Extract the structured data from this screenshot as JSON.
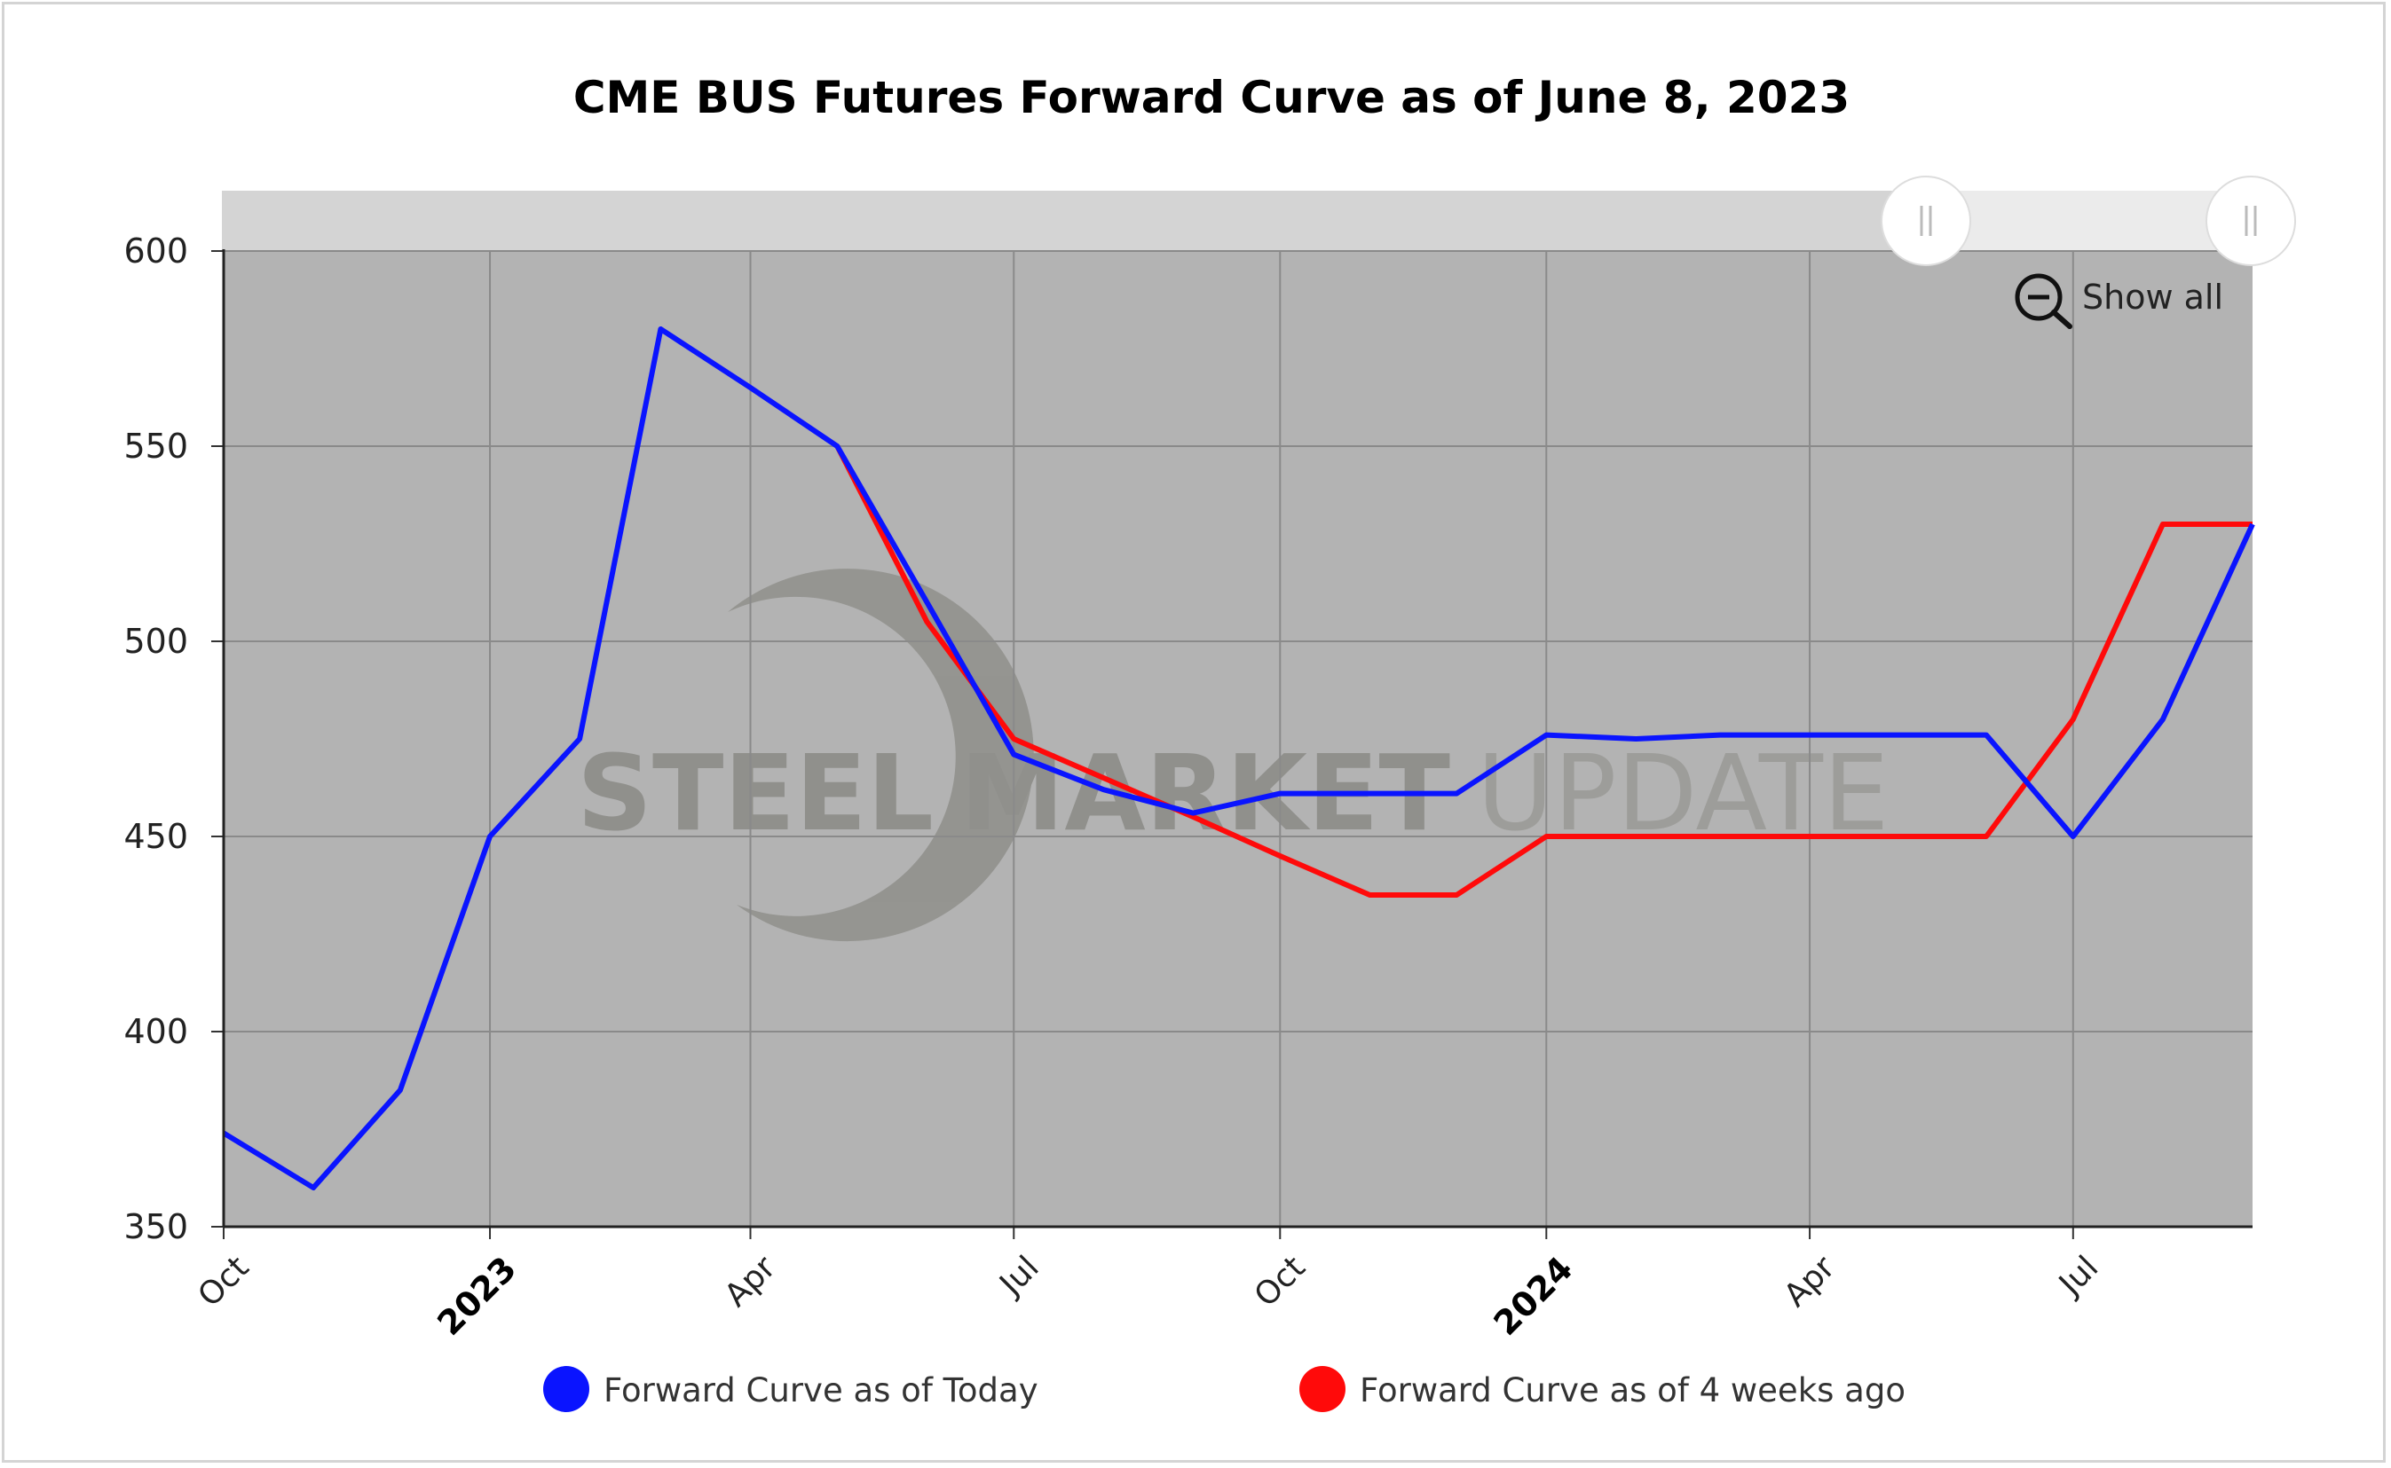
{
  "chart_data": {
    "type": "line",
    "title": "CME BUS Futures Forward Curve as of June 8, 2023",
    "ylim": [
      350,
      600
    ],
    "yticks": [
      "350",
      "400",
      "450",
      "500",
      "550",
      "600"
    ],
    "xlim": [
      "2022-10-01",
      "2024-09-01"
    ],
    "xticks": [
      {
        "date": "2022-10-01",
        "label": "Oct",
        "bold": false
      },
      {
        "date": "2023-01-01",
        "label": "2023",
        "bold": true
      },
      {
        "date": "2023-04-01",
        "label": "Apr",
        "bold": false
      },
      {
        "date": "2023-07-01",
        "label": "Jul",
        "bold": false
      },
      {
        "date": "2023-10-01",
        "label": "Oct",
        "bold": false
      },
      {
        "date": "2024-01-01",
        "label": "2024",
        "bold": true
      },
      {
        "date": "2024-04-01",
        "label": "Apr",
        "bold": false
      },
      {
        "date": "2024-07-01",
        "label": "Jul",
        "bold": false
      }
    ],
    "grid": true,
    "legend_position": "bottom",
    "series": [
      {
        "name": "Forward Curve as of Today",
        "color": "#0a14ff",
        "points": [
          [
            "2022-10-01",
            374
          ],
          [
            "2022-11-01",
            360
          ],
          [
            "2022-12-01",
            385
          ],
          [
            "2023-01-01",
            450
          ],
          [
            "2023-02-01",
            475
          ],
          [
            "2023-03-01",
            580
          ],
          [
            "2023-04-01",
            565
          ],
          [
            "2023-05-01",
            550
          ],
          [
            "2023-06-01",
            510
          ],
          [
            "2023-07-01",
            471
          ],
          [
            "2023-08-01",
            462
          ],
          [
            "2023-09-01",
            456
          ],
          [
            "2023-10-01",
            461
          ],
          [
            "2023-11-01",
            461
          ],
          [
            "2023-12-01",
            461
          ],
          [
            "2024-01-01",
            476
          ],
          [
            "2024-02-01",
            475
          ],
          [
            "2024-03-01",
            476
          ],
          [
            "2024-04-01",
            476
          ],
          [
            "2024-05-01",
            476
          ],
          [
            "2024-06-01",
            476
          ],
          [
            "2024-07-01",
            450
          ],
          [
            "2024-08-01",
            480
          ],
          [
            "2024-09-01",
            530
          ]
        ]
      },
      {
        "name": "Forward Curve as of 4 weeks ago",
        "color": "#ff0a0a",
        "points": [
          [
            "2023-05-01",
            550
          ],
          [
            "2023-06-01",
            505
          ],
          [
            "2023-07-01",
            475
          ],
          [
            "2023-08-01",
            465
          ],
          [
            "2023-09-01",
            455
          ],
          [
            "2023-10-01",
            445
          ],
          [
            "2023-11-01",
            435
          ],
          [
            "2023-12-01",
            435
          ],
          [
            "2024-01-01",
            450
          ],
          [
            "2024-02-01",
            450
          ],
          [
            "2024-03-01",
            450
          ],
          [
            "2024-04-01",
            450
          ],
          [
            "2024-05-01",
            450
          ],
          [
            "2024-06-01",
            450
          ],
          [
            "2024-07-01",
            480
          ],
          [
            "2024-08-01",
            530
          ],
          [
            "2024-09-01",
            530
          ]
        ]
      }
    ]
  },
  "zoom": {
    "show_all_label": "Show all"
  },
  "watermark": {
    "word1": "STEEL",
    "word2": "MARKET",
    "word3": "UPDATE"
  },
  "colors": {
    "plot_background": "#b3b3b3",
    "scrollbar_track": "#d4d4d4",
    "scrollbar_selection": "#ebebeb"
  }
}
